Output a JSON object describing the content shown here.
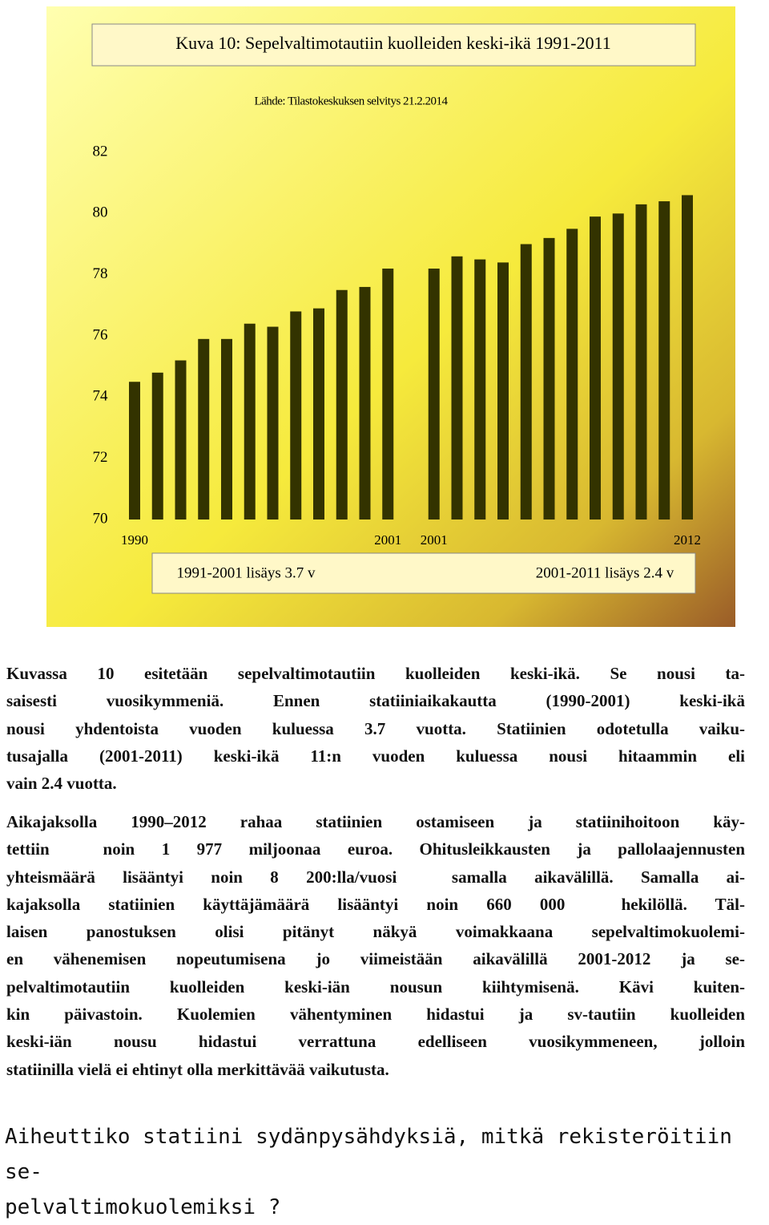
{
  "chart_data": {
    "type": "bar",
    "title": "Kuva 10: Sepelvaltimotautiin kuolleiden keski-ikä 1991-2011",
    "subtitle": "Lähde: Tilastokeskuksen selvitys 21.2.2014",
    "categories": [
      "1990",
      null,
      null,
      null,
      null,
      null,
      null,
      null,
      null,
      null,
      null,
      "2001",
      null,
      "2001",
      null,
      null,
      null,
      null,
      null,
      null,
      null,
      null,
      null,
      null,
      "2012"
    ],
    "values": [
      74.5,
      74.8,
      75.2,
      75.9,
      75.9,
      76.4,
      76.3,
      76.8,
      76.9,
      77.5,
      77.6,
      78.2,
      null,
      78.2,
      78.6,
      78.5,
      78.4,
      79.0,
      79.2,
      79.5,
      79.9,
      80.0,
      80.3,
      80.4,
      80.6
    ],
    "color": "#333300",
    "ylim": [
      70,
      82
    ],
    "yticks": [
      70,
      72,
      74,
      76,
      78,
      80,
      82
    ],
    "grid": false,
    "annotations": [
      "1991-2001 lisäys 3.7 v",
      "2001-2011 lisäys 2.4 v"
    ]
  },
  "document": {
    "paragraphs": [
      {
        "lines": [
          "Kuvassa 10 esitetään sepelvaltimotautiin kuolleiden keski-ikä. Se nousi ta-",
          "saisesti vuosikymmeniä. Ennen statiiniaikakautta (1990-2001) keski-ikä",
          "nousi yhdentoista vuoden kuluessa 3.7 vuotta. Statiinien odotetulla vaiku-",
          "tusajalla (2001-2011) keski-ikä 11:n vuoden kuluessa nousi hitaammin eli",
          "vain 2.4 vuotta."
        ]
      },
      {
        "lines": [
          "Aikajaksolla 1990–2012 rahaa statiinien ostamiseen ja statiinihoitoon käy-",
          "tettiin  noin 1 977 miljoonaa euroa. Ohitusleikkausten ja pallolaajennusten",
          "yhteismäärä lisääntyi noin 8 200:lla/vuosi  samalla aikavälillä. Samalla ai-",
          "kajaksolla statiinien käyttäjämäärä lisääntyi noin 660 000  hekilöllä. Täl-",
          "laisen panostuksen olisi pitänyt näkyä voimakkaana sepelvaltimokuolemi-",
          "en vähenemisen nopeutumisena jo viimeistään aikavälillä 2001-2012 ja se-",
          "pelvaltimotautiin kuolleiden keski-iän nousun kiihtymisenä. Kävi kuiten-",
          "kin päivastoin. Kuolemien vähentyminen hidastui ja sv-tautiin kuolleiden",
          "keski-iän nousu hidastui verrattuna edelliseen vuosikymmeneen, jolloin",
          "statiinilla vielä ei ehtinyt olla merkittävää vaikutusta."
        ]
      }
    ],
    "heading": [
      "Aiheuttiko statiini sydänpysähdyksiä, mitkä rekisteröitiin se-",
      "pelvaltimokuolemiksi ?"
    ]
  }
}
